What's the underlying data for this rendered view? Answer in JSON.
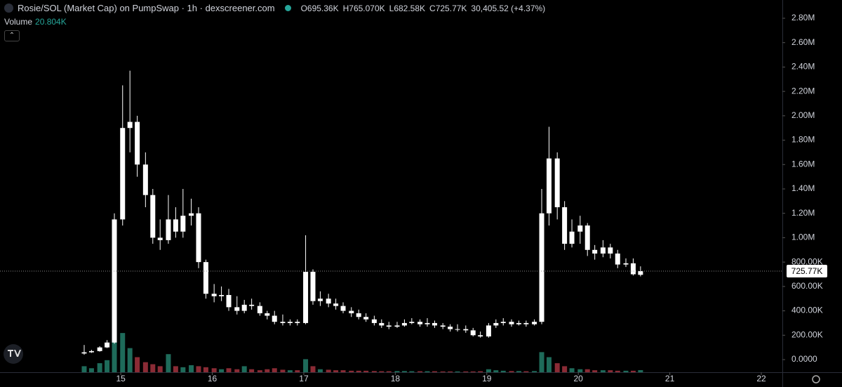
{
  "chart_data": {
    "type": "candlestick",
    "title": "Rosie/SOL (Market Cap) on PumpSwap · 1h · dexscreener.com",
    "ohlc_header": {
      "open": "O695.36K",
      "high": "H765.070K",
      "low": "L682.58K",
      "close": "C725.77K",
      "change": "30,405.52 (+4.37%)"
    },
    "volume_header": {
      "name": "Volume",
      "last": "20.804K"
    },
    "up_color": "#ffffff",
    "down_color": "#ffffff",
    "volume_up_color": "#1e6b5a",
    "volume_down_color": "#8a2b35",
    "x": [
      14.6,
      14.68,
      14.77,
      14.85,
      14.93,
      15.02,
      15.1,
      15.18,
      15.27,
      15.35,
      15.43,
      15.52,
      15.6,
      15.68,
      15.77,
      15.85,
      15.93,
      16.02,
      16.1,
      16.18,
      16.27,
      16.35,
      16.43,
      16.52,
      16.6,
      16.68,
      16.77,
      16.85,
      16.93,
      17.02,
      17.1,
      17.18,
      17.27,
      17.35,
      17.43,
      17.52,
      17.6,
      17.68,
      17.77,
      17.85,
      17.93,
      18.02,
      18.1,
      18.18,
      18.27,
      18.35,
      18.43,
      18.52,
      18.6,
      18.68,
      18.77,
      18.85,
      18.93,
      19.02,
      19.1,
      19.18,
      19.27,
      19.35,
      19.43,
      19.52,
      19.6,
      19.68,
      19.77,
      19.85,
      19.93,
      20.02,
      20.1,
      20.18,
      20.27,
      20.35,
      20.43,
      20.52,
      20.6,
      20.68
    ],
    "open": [
      50000,
      60000,
      70000,
      100000,
      140000,
      1150000,
      1900000,
      1950000,
      1600000,
      1350000,
      1000000,
      980000,
      1150000,
      1050000,
      1180000,
      1200000,
      800000,
      540000,
      520000,
      530000,
      430000,
      400000,
      450000,
      440000,
      380000,
      360000,
      310000,
      300000,
      310000,
      300000,
      720000,
      480000,
      500000,
      460000,
      440000,
      400000,
      380000,
      350000,
      330000,
      300000,
      280000,
      270000,
      280000,
      300000,
      310000,
      290000,
      300000,
      280000,
      270000,
      250000,
      250000,
      240000,
      200000,
      190000,
      280000,
      300000,
      310000,
      290000,
      300000,
      290000,
      310000,
      1200000,
      1650000,
      1250000,
      950000,
      1050000,
      1100000,
      900000,
      870000,
      920000,
      870000,
      780000,
      790000,
      695360
    ],
    "high": [
      120000,
      80000,
      110000,
      160000,
      1200000,
      2250000,
      2370000,
      2000000,
      1700000,
      1400000,
      1150000,
      1350000,
      1250000,
      1400000,
      1320000,
      1250000,
      820000,
      620000,
      600000,
      580000,
      520000,
      490000,
      500000,
      470000,
      400000,
      400000,
      370000,
      330000,
      330000,
      1020000,
      740000,
      560000,
      540000,
      500000,
      470000,
      430000,
      410000,
      380000,
      360000,
      330000,
      310000,
      310000,
      330000,
      340000,
      330000,
      340000,
      320000,
      300000,
      290000,
      290000,
      280000,
      260000,
      230000,
      300000,
      330000,
      340000,
      330000,
      320000,
      320000,
      330000,
      1400000,
      1910000,
      1700000,
      1300000,
      1150000,
      1180000,
      1120000,
      940000,
      980000,
      950000,
      900000,
      830000,
      830000,
      765070
    ],
    "low": [
      40000,
      55000,
      65000,
      95000,
      130000,
      1100000,
      1700000,
      1500000,
      1250000,
      950000,
      900000,
      950000,
      1000000,
      1000000,
      1100000,
      750000,
      500000,
      470000,
      480000,
      400000,
      370000,
      380000,
      410000,
      360000,
      330000,
      290000,
      280000,
      280000,
      280000,
      290000,
      450000,
      440000,
      430000,
      410000,
      380000,
      350000,
      330000,
      310000,
      280000,
      260000,
      250000,
      260000,
      270000,
      290000,
      270000,
      270000,
      260000,
      250000,
      230000,
      230000,
      220000,
      190000,
      180000,
      180000,
      260000,
      280000,
      270000,
      280000,
      270000,
      280000,
      290000,
      1100000,
      1150000,
      900000,
      920000,
      950000,
      850000,
      820000,
      840000,
      830000,
      750000,
      760000,
      690000,
      682580
    ],
    "close": [
      60000,
      70000,
      100000,
      140000,
      1150000,
      1900000,
      1950000,
      1600000,
      1350000,
      1000000,
      980000,
      1150000,
      1050000,
      1180000,
      1200000,
      800000,
      540000,
      520000,
      530000,
      430000,
      400000,
      450000,
      440000,
      380000,
      360000,
      310000,
      300000,
      310000,
      300000,
      720000,
      480000,
      500000,
      460000,
      440000,
      400000,
      380000,
      350000,
      330000,
      300000,
      280000,
      270000,
      280000,
      300000,
      310000,
      290000,
      300000,
      280000,
      270000,
      250000,
      250000,
      240000,
      200000,
      190000,
      280000,
      300000,
      310000,
      290000,
      300000,
      290000,
      310000,
      1200000,
      1650000,
      1250000,
      950000,
      1050000,
      1100000,
      900000,
      870000,
      920000,
      870000,
      780000,
      790000,
      700000,
      725770
    ],
    "volume": [
      60000,
      40000,
      90000,
      120000,
      560000,
      390000,
      240000,
      150000,
      100000,
      80000,
      60000,
      180000,
      60000,
      50000,
      70000,
      60000,
      50000,
      40000,
      30000,
      40000,
      30000,
      60000,
      30000,
      20000,
      30000,
      40000,
      25000,
      20000,
      20000,
      130000,
      60000,
      30000,
      25000,
      20000,
      20000,
      15000,
      15000,
      15000,
      12000,
      10000,
      10000,
      12000,
      12000,
      10000,
      10000,
      10000,
      10000,
      8000,
      8000,
      8000,
      8000,
      8000,
      10000,
      30000,
      20000,
      15000,
      12000,
      12000,
      10000,
      12000,
      200000,
      150000,
      90000,
      60000,
      40000,
      30000,
      30000,
      20000,
      20000,
      20000,
      15000,
      15000,
      15000,
      20804
    ],
    "xlim": [
      13.68,
      22.23
    ],
    "xticks": [
      15,
      16,
      17,
      18,
      19,
      20,
      21,
      22
    ],
    "ylim": [
      -103700,
      2949800
    ],
    "yticks": [
      {
        "value": 0,
        "label": "0.0000"
      },
      {
        "value": 200000,
        "label": "200.00K"
      },
      {
        "value": 400000,
        "label": "400.00K"
      },
      {
        "value": 600000,
        "label": "600.00K"
      },
      {
        "value": 800000,
        "label": "800.00K"
      },
      {
        "value": 1000000,
        "label": "1.00M"
      },
      {
        "value": 1200000,
        "label": "1.20M"
      },
      {
        "value": 1400000,
        "label": "1.40M"
      },
      {
        "value": 1600000,
        "label": "1.60M"
      },
      {
        "value": 1800000,
        "label": "1.80M"
      },
      {
        "value": 2000000,
        "label": "2.00M"
      },
      {
        "value": 2200000,
        "label": "2.20M"
      },
      {
        "value": 2400000,
        "label": "2.40M"
      },
      {
        "value": 2600000,
        "label": "2.60M"
      },
      {
        "value": 2800000,
        "label": "2.80M"
      }
    ],
    "y2lim": [
      0,
      3700000
    ],
    "last_price": {
      "value": 725770,
      "label": "725.77K"
    },
    "grid": false
  }
}
